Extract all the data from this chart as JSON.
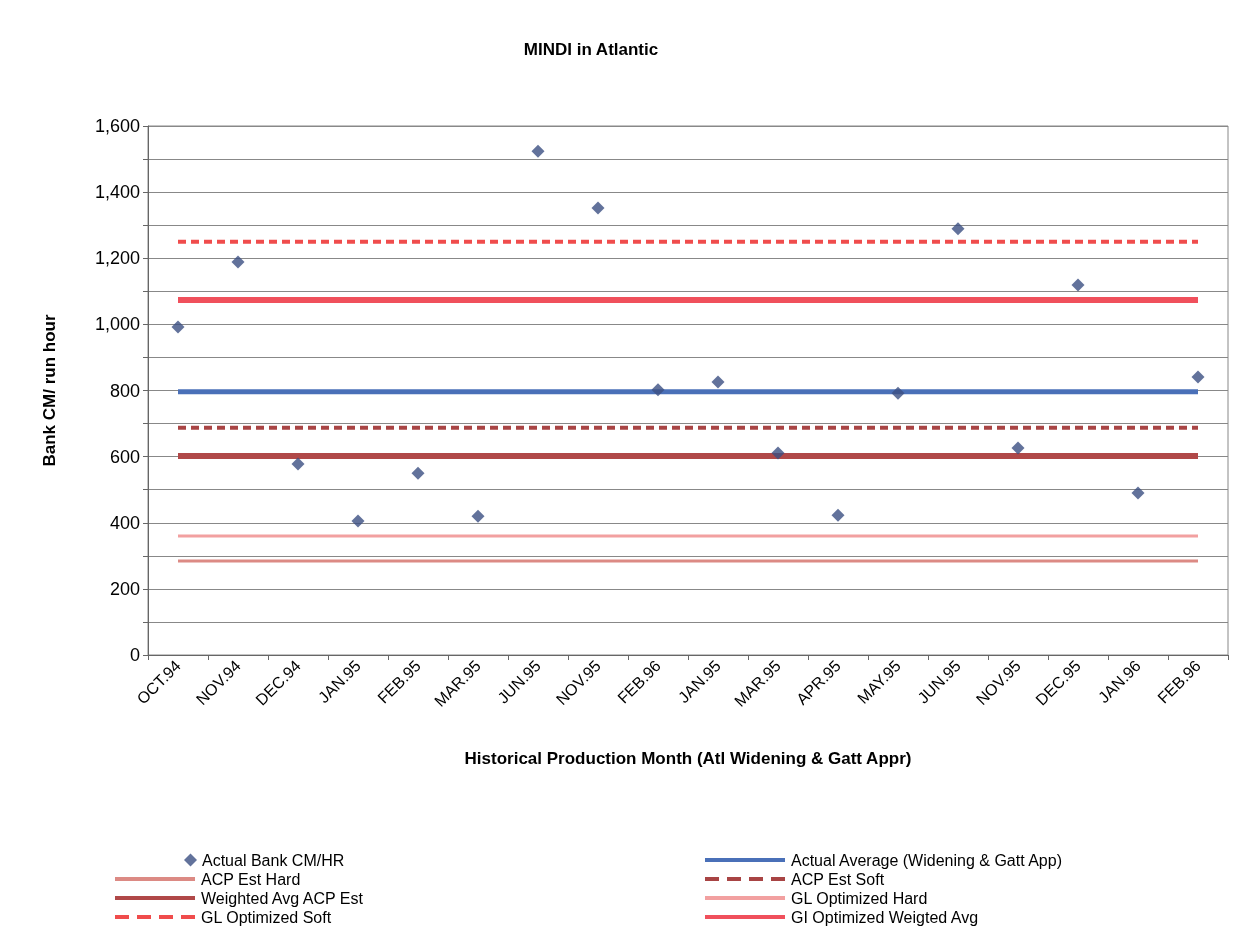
{
  "chart_data": {
    "type": "scatter",
    "title": "MINDI in Atlantic",
    "xlabel": "Historical Production Month (Atl Widening & Gatt Appr)",
    "ylabel": "Bank CM/ run hour",
    "categories": [
      "OCT.94",
      "NOV.94",
      "DEC.94",
      "JAN.95",
      "FEB.95",
      "MAR.95",
      "JUN.95",
      "NOV.95",
      "FEB.96",
      "JAN.95",
      "MAR.95",
      "APR.95",
      "MAY.95",
      "JUN.95",
      "NOV.95",
      "DEC.95",
      "JAN.96",
      "FEB.96"
    ],
    "series": [
      {
        "name": "Actual Bank CM/HR",
        "marker": "diamond",
        "color": "#3b4f82",
        "values": [
          992,
          1189,
          578,
          405,
          550,
          420,
          1524,
          1352,
          802,
          826,
          611,
          423,
          792,
          1289,
          626,
          1119,
          490,
          841
        ]
      },
      {
        "name": "Actual Average (Widening & Gatt App)",
        "type": "line",
        "marker": "none",
        "line_style": "solid",
        "color": "#4a70b8",
        "values": [
          796,
          796,
          796,
          796,
          796,
          796,
          796,
          796,
          796,
          796,
          796,
          796,
          796,
          796,
          796,
          796,
          796,
          796
        ]
      },
      {
        "name": "ACP Est Hard",
        "type": "line",
        "marker": "none",
        "line_style": "solid",
        "color": "#dc8a84",
        "values": [
          284,
          284,
          284,
          284,
          284,
          284,
          284,
          284,
          284,
          284,
          284,
          284,
          284,
          284,
          284,
          284,
          284,
          284
        ]
      },
      {
        "name": "ACP Est Soft",
        "type": "line",
        "marker": "none",
        "line_style": "dashed",
        "color": "#a84444",
        "values": [
          687,
          687,
          687,
          687,
          687,
          687,
          687,
          687,
          687,
          687,
          687,
          687,
          687,
          687,
          687,
          687,
          687,
          687
        ]
      },
      {
        "name": "Weighted Avg ACP Est",
        "type": "line",
        "marker": "none",
        "line_style": "solid",
        "color": "#b04848",
        "values": [
          602,
          602,
          602,
          602,
          602,
          602,
          602,
          602,
          602,
          602,
          602,
          602,
          602,
          602,
          602,
          602,
          602,
          602
        ]
      },
      {
        "name": "GL Optimized Hard",
        "type": "line",
        "marker": "none",
        "line_style": "solid",
        "color": "#f2a0a0",
        "values": [
          360,
          360,
          360,
          360,
          360,
          360,
          360,
          360,
          360,
          360,
          360,
          360,
          360,
          360,
          360,
          360,
          360,
          360
        ]
      },
      {
        "name": "GL Optimized Soft",
        "type": "line",
        "marker": "none",
        "line_style": "dashed",
        "color": "#f04c4c",
        "values": [
          1250,
          1250,
          1250,
          1250,
          1250,
          1250,
          1250,
          1250,
          1250,
          1250,
          1250,
          1250,
          1250,
          1250,
          1250,
          1250,
          1250,
          1250
        ]
      },
      {
        "name": "GI Optimized Weigted Avg",
        "type": "line",
        "marker": "none",
        "line_style": "solid",
        "color": "#f0505c",
        "values": [
          1074,
          1074,
          1074,
          1074,
          1074,
          1074,
          1074,
          1074,
          1074,
          1074,
          1074,
          1074,
          1074,
          1074,
          1074,
          1074,
          1074,
          1074
        ]
      }
    ],
    "ylim": [
      0,
      1600
    ],
    "yticks": [
      0,
      {
        "value": 100,
        "label": null
      },
      200,
      {
        "value": 300,
        "label": null
      },
      400,
      {
        "value": 500,
        "label": null
      },
      600,
      {
        "value": 700,
        "label": null
      },
      800,
      {
        "value": 900,
        "label": null
      },
      {
        "value": 1000,
        "label": "1,000"
      },
      {
        "value": 1100,
        "label": null
      },
      {
        "value": 1200,
        "label": "1,200"
      },
      {
        "value": 1300,
        "label": null
      },
      {
        "value": 1400,
        "label": "1,400"
      },
      {
        "value": 1500,
        "label": null
      },
      {
        "value": 1600,
        "label": "1,600"
      }
    ],
    "grid": "y",
    "legend": "bottom"
  }
}
